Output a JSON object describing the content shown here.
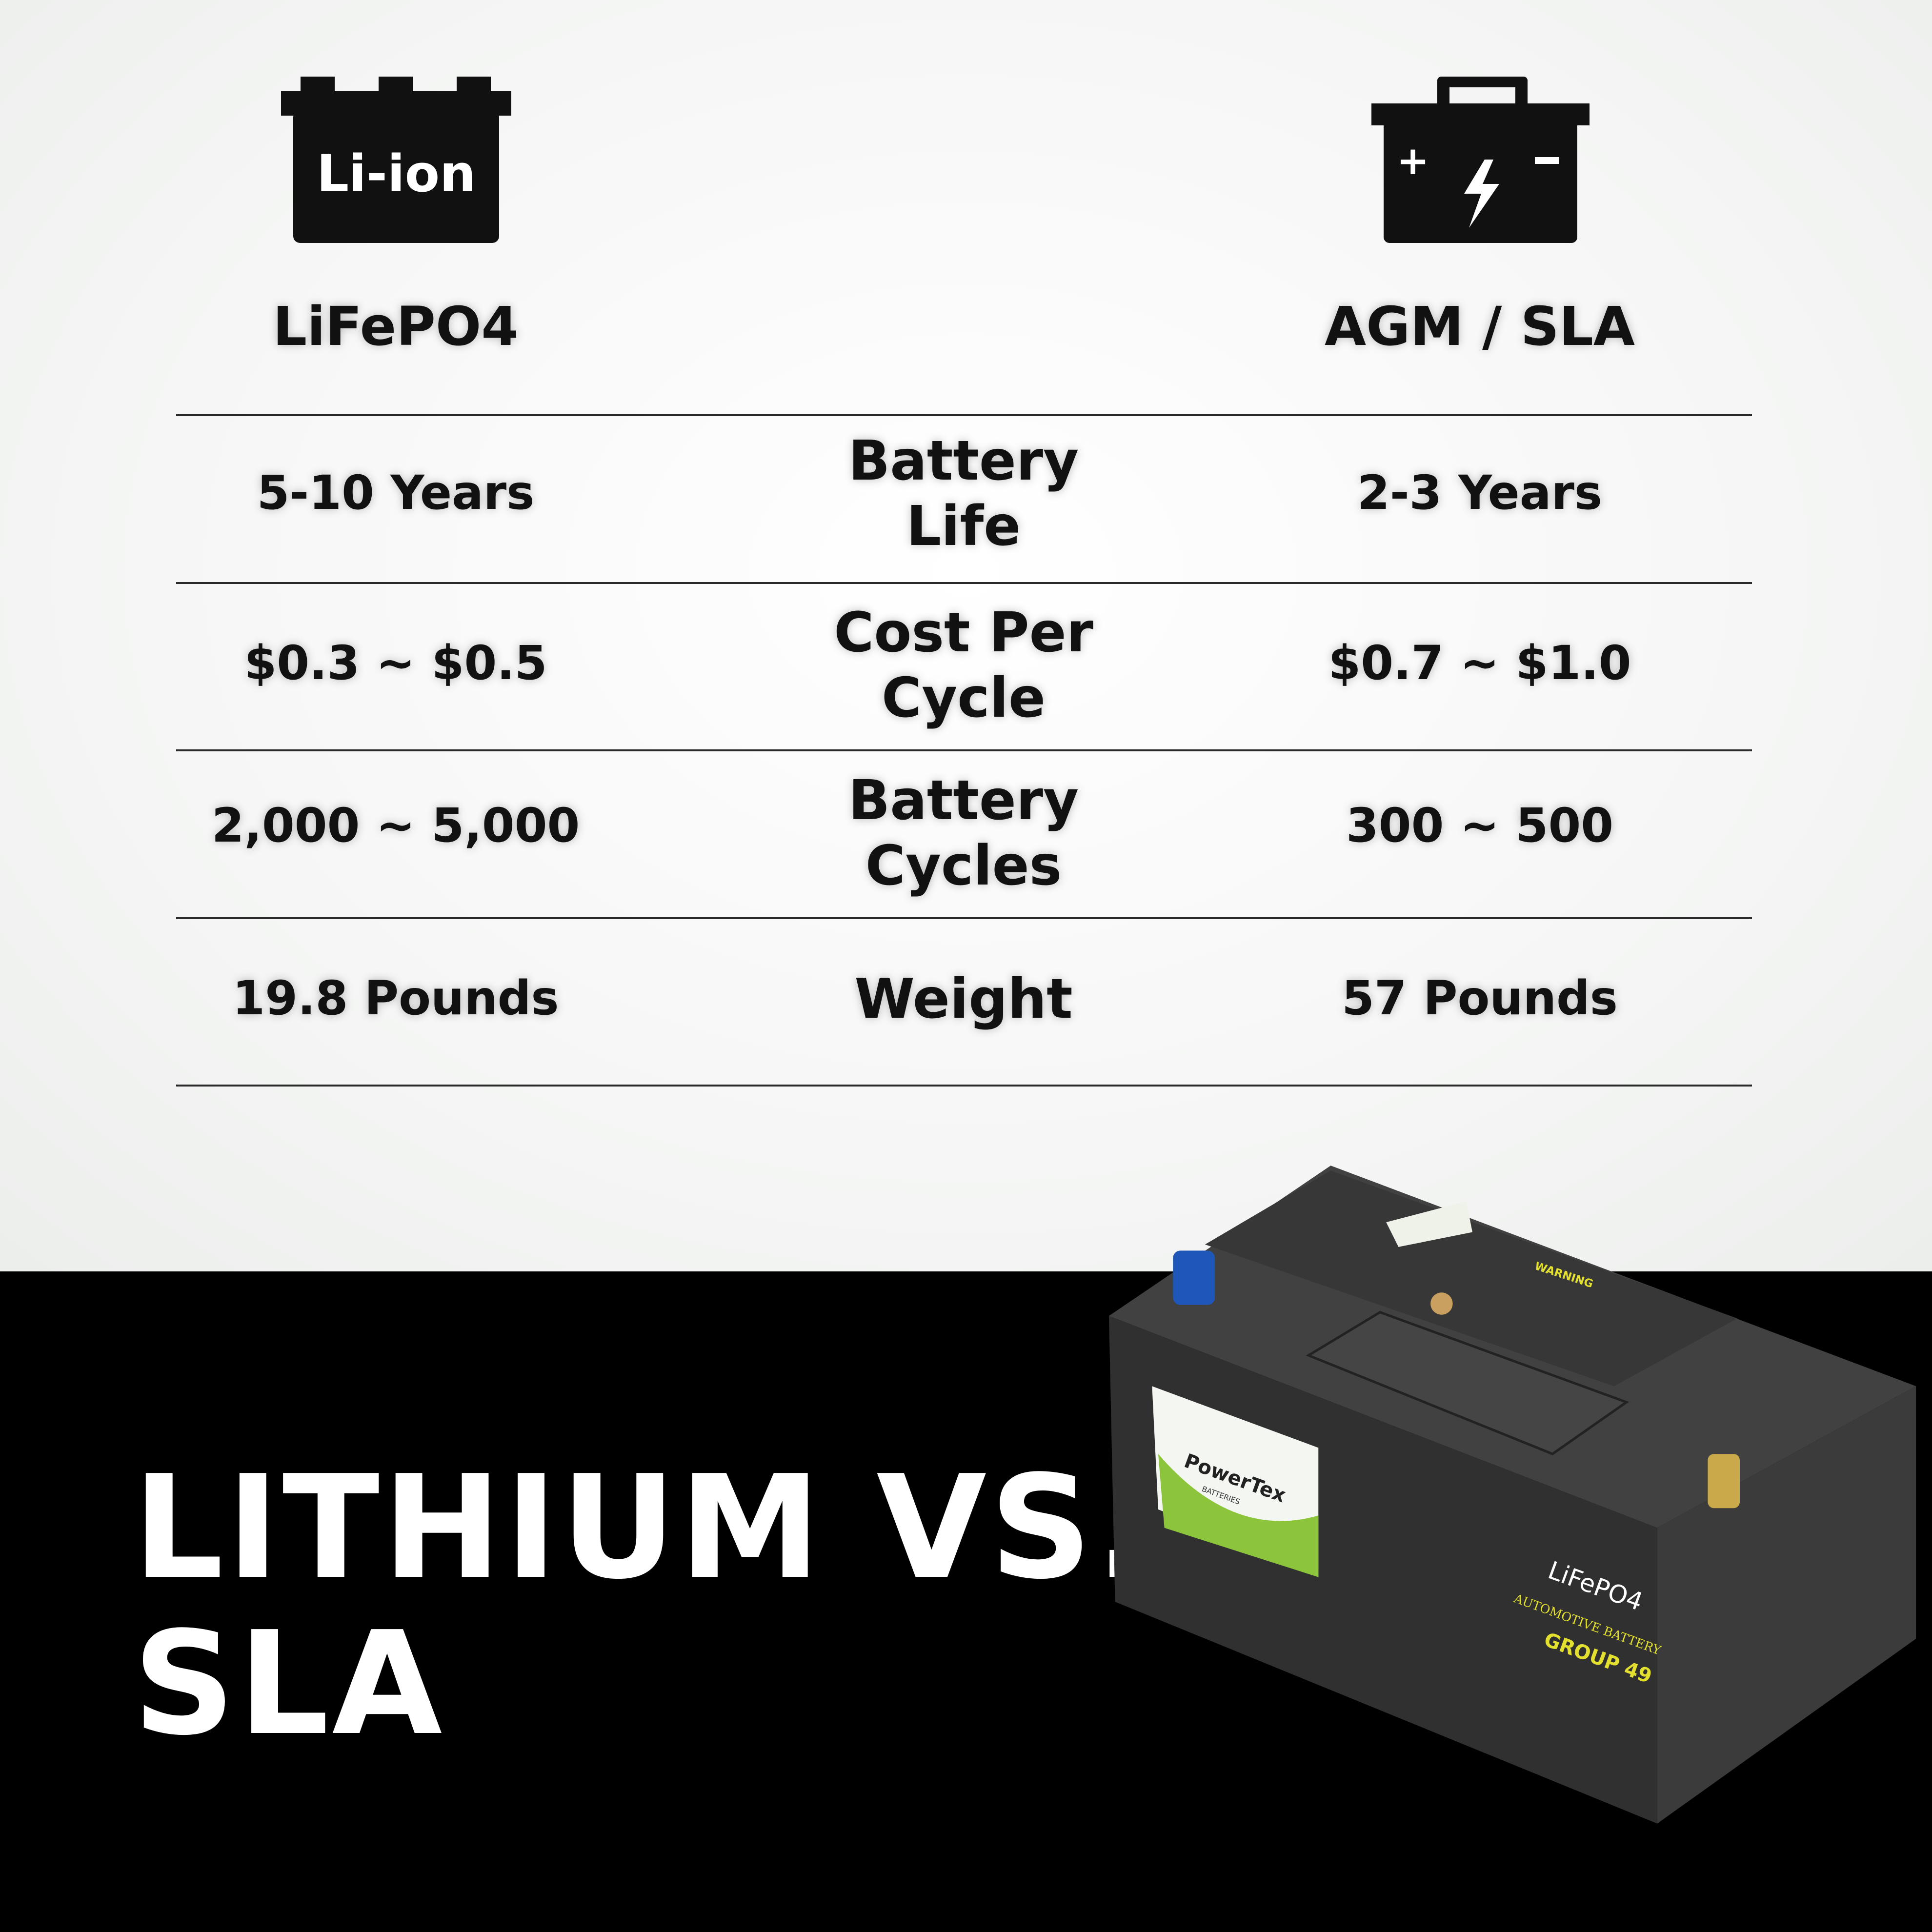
{
  "columns": {
    "left": {
      "label": "LiFePO4",
      "icon": "li-ion-battery-icon",
      "icon_text": "Li-ion"
    },
    "right": {
      "label": "AGM / SLA",
      "icon": "lead-acid-battery-icon",
      "icon_plus": "+",
      "icon_minus": "-"
    }
  },
  "rows": [
    {
      "metric": "Battery Life",
      "lifepo4": "5-10 Years",
      "agm": "2-3 Years"
    },
    {
      "metric": "Cost Per Cycle",
      "lifepo4": "$0.3 ~ $0.5",
      "agm": "$0.7 ~ $1.0"
    },
    {
      "metric": "Battery Cycles",
      "lifepo4": "2,000 ~ 5,000",
      "agm": "300 ~ 500"
    },
    {
      "metric": "Weight",
      "lifepo4": "19.8 Pounds",
      "agm": "57 Pounds"
    }
  ],
  "headline": {
    "line1": "LITHIUM VS.",
    "line2": "SLA"
  },
  "product": {
    "brand": "PowerTex",
    "brand_sub": "BATTERIES",
    "chemistry": "LiFePO4",
    "type": "AUTOMOTIVE BATTERY",
    "group": "GROUP 49",
    "warning": "WARNING"
  },
  "colors": {
    "background_top": "#f3f4f3",
    "background_bottom": "#000000",
    "battery_body": "#3a3b3a",
    "label_accent": "#e4e030",
    "brand_green": "#8cc43c",
    "terminal_negative": "#1f57b8",
    "terminal_positive": "#c9a94a"
  }
}
